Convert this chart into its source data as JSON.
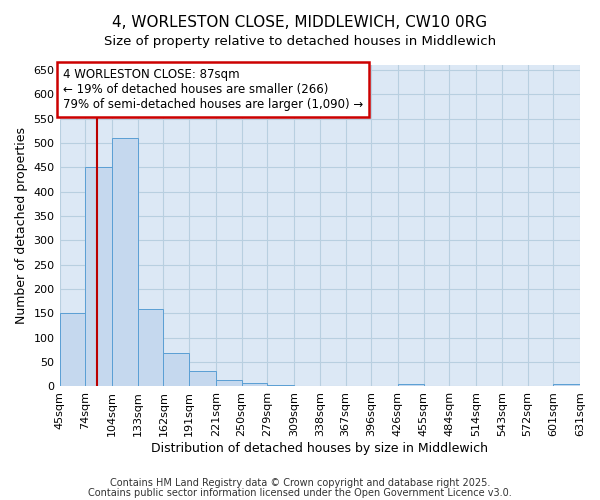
{
  "title": "4, WORLESTON CLOSE, MIDDLEWICH, CW10 0RG",
  "subtitle": "Size of property relative to detached houses in Middlewich",
  "xlabel": "Distribution of detached houses by size in Middlewich",
  "ylabel": "Number of detached properties",
  "bins": [
    45,
    74,
    104,
    133,
    162,
    191,
    221,
    250,
    279,
    309,
    338,
    367,
    396,
    426,
    455,
    484,
    514,
    543,
    572,
    601,
    631
  ],
  "values": [
    150,
    450,
    510,
    160,
    68,
    32,
    13,
    8,
    4,
    0,
    0,
    0,
    0,
    5,
    0,
    0,
    0,
    0,
    0,
    5
  ],
  "bar_color": "#c5d8ee",
  "bar_edge_color": "#5a9fd4",
  "property_line_x": 87,
  "property_line_color": "#bb0000",
  "annotation_text": "4 WORLESTON CLOSE: 87sqm\n← 19% of detached houses are smaller (266)\n79% of semi-detached houses are larger (1,090) →",
  "annotation_box_color": "#cc0000",
  "annotation_text_color": "#000000",
  "ylim": [
    0,
    660
  ],
  "yticks": [
    0,
    50,
    100,
    150,
    200,
    250,
    300,
    350,
    400,
    450,
    500,
    550,
    600,
    650
  ],
  "footer_line1": "Contains HM Land Registry data © Crown copyright and database right 2025.",
  "footer_line2": "Contains public sector information licensed under the Open Government Licence v3.0.",
  "background_color": "#ffffff",
  "plot_bg_color": "#dce8f5",
  "grid_color": "#b8cfe0",
  "title_fontsize": 11,
  "tick_label_fontsize": 8,
  "axis_label_fontsize": 9,
  "footer_fontsize": 7
}
